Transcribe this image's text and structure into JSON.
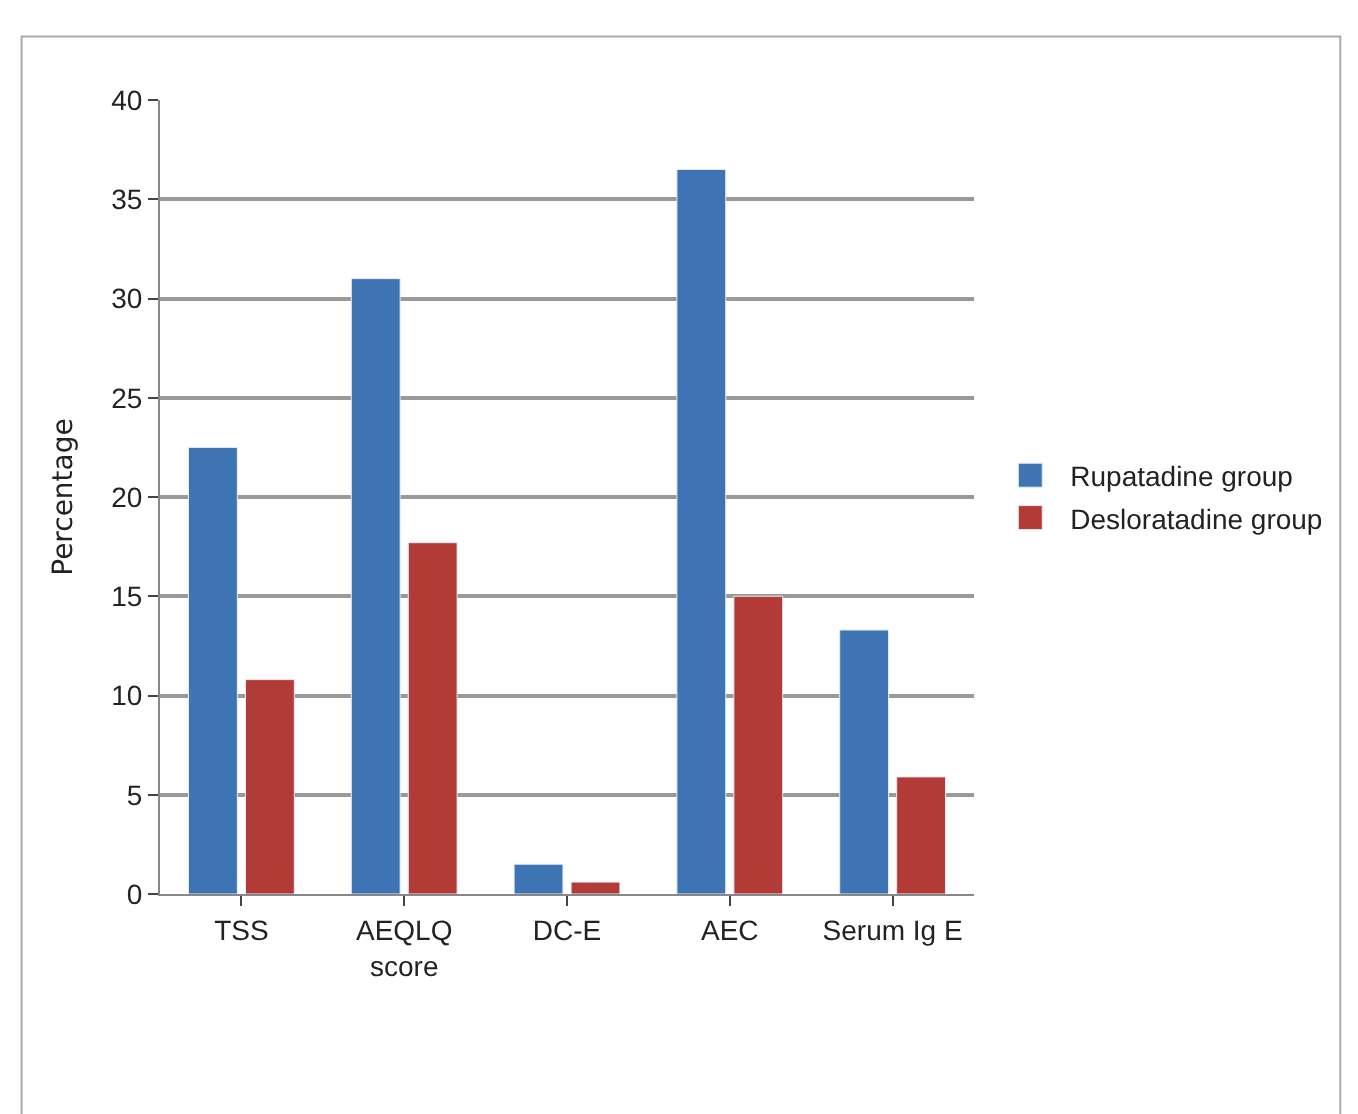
{
  "chart_data": {
    "type": "bar",
    "ylabel": "Percentage",
    "categories": [
      "TSS",
      "AEQLQ\nscore",
      "DC-E",
      "AEC",
      "Serum Ig E"
    ],
    "series": [
      {
        "name": "Rupatadine group",
        "color": "#3e74b4",
        "values": [
          22.5,
          31,
          1.5,
          36.5,
          13.3
        ]
      },
      {
        "name": "Desloratadine group",
        "color": "#b33b37",
        "values": [
          10.8,
          17.7,
          0.6,
          15,
          5.9
        ]
      }
    ],
    "ylim": [
      0,
      40
    ],
    "yticks": [
      0,
      5,
      10,
      15,
      20,
      25,
      30,
      35,
      40
    ],
    "grid": "y",
    "legend": "right"
  }
}
